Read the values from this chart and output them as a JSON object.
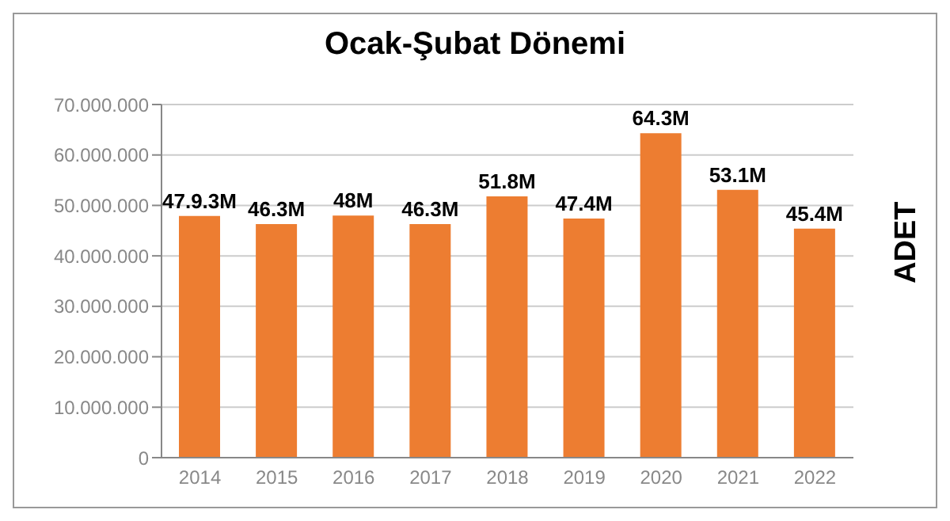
{
  "chart_data": {
    "type": "bar",
    "title": "Ocak-Şubat Dönemi",
    "ylabel": "ADET",
    "categories": [
      "2014",
      "2015",
      "2016",
      "2017",
      "2018",
      "2019",
      "2020",
      "2021",
      "2022"
    ],
    "values": [
      47900000,
      46300000,
      48000000,
      46300000,
      51800000,
      47400000,
      64300000,
      53100000,
      45400000
    ],
    "value_labels": [
      "47.9.3M",
      "46.3M",
      "48M",
      "46.3M",
      "51.8M",
      "47.4M",
      "64.3M",
      "53.1M",
      "45.4M"
    ],
    "color": "#ed7d31",
    "ylim": [
      0,
      70000000
    ],
    "yticks": [
      {
        "value": 0,
        "label": "0"
      },
      {
        "value": 10000000,
        "label": "10.000.000"
      },
      {
        "value": 20000000,
        "label": "20.000.000"
      },
      {
        "value": 30000000,
        "label": "30.000.000"
      },
      {
        "value": 40000000,
        "label": "40.000.000"
      },
      {
        "value": 50000000,
        "label": "50.000.000"
      },
      {
        "value": 60000000,
        "label": "60.000.000"
      },
      {
        "value": 70000000,
        "label": "70.000.000"
      }
    ],
    "grid": "y"
  }
}
